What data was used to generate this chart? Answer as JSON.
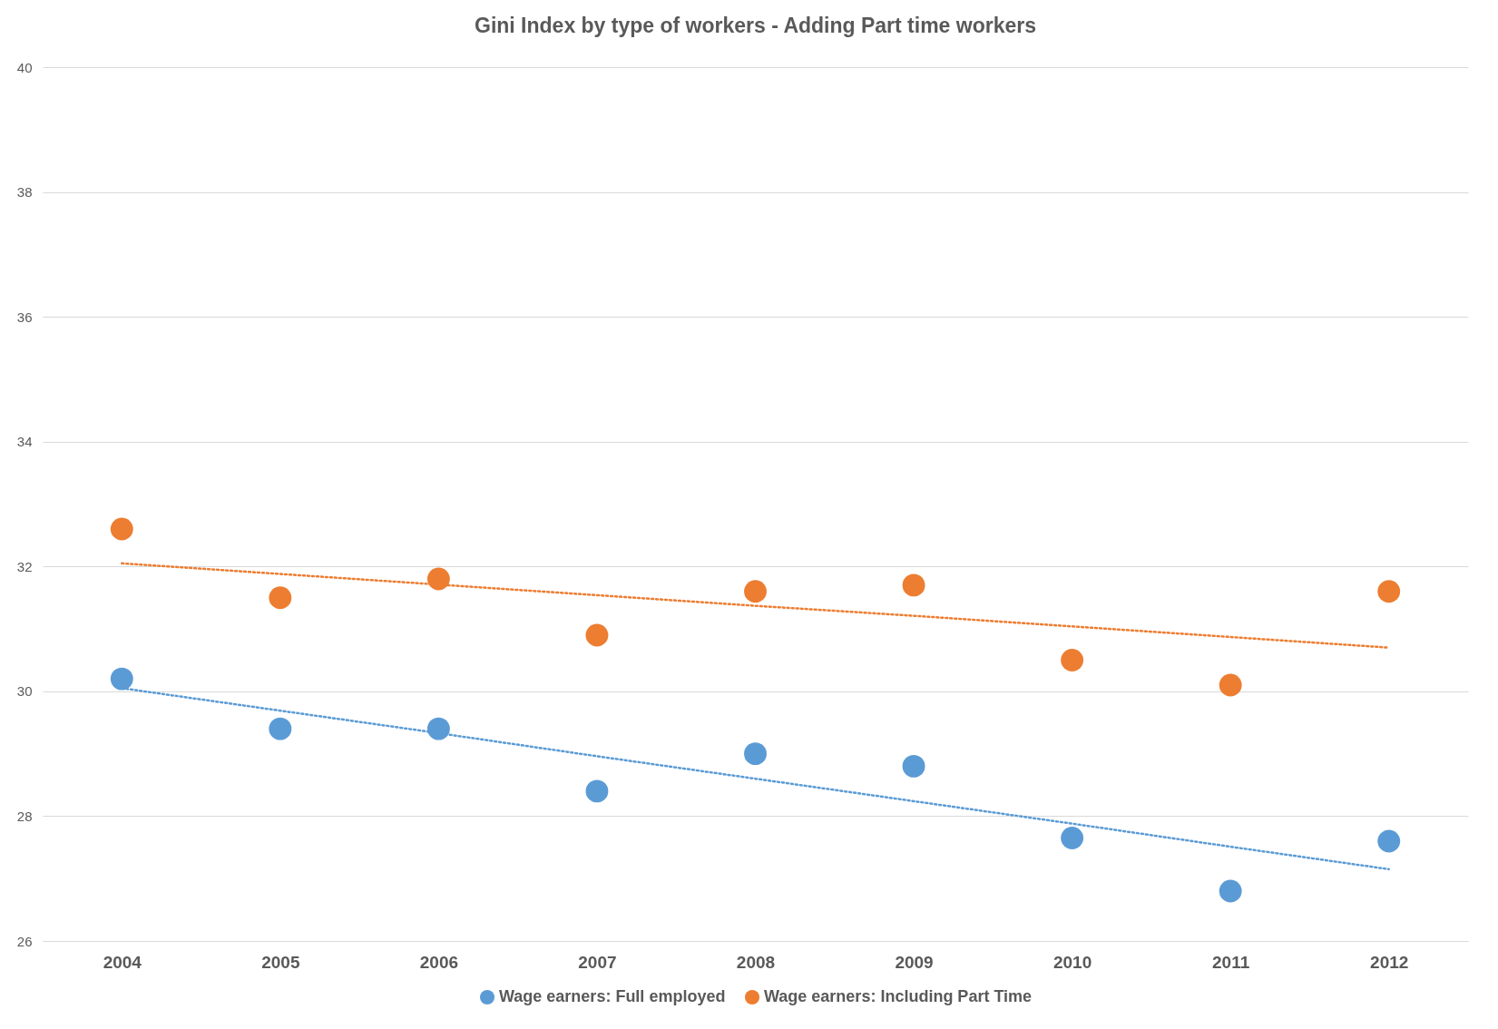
{
  "chart_data": {
    "type": "scatter",
    "title": "Gini Index by type of workers - Adding Part time workers",
    "categories": [
      "2004",
      "2005",
      "2006",
      "2007",
      "2008",
      "2009",
      "2010",
      "2011",
      "2012"
    ],
    "series": [
      {
        "name": "Wage earners: Full employed",
        "color": "#5b9bd5",
        "values": [
          30.2,
          29.4,
          29.4,
          28.4,
          29.0,
          28.8,
          27.65,
          26.8,
          27.6
        ]
      },
      {
        "name": "Wage earners: Including Part Time",
        "color": "#ed7d31",
        "values": [
          32.6,
          31.5,
          31.8,
          30.9,
          31.6,
          31.7,
          30.5,
          30.1,
          31.6
        ]
      },
      {
        "type": "line",
        "color": "#5b9bd5",
        "values": [
          30.05,
          29.69,
          29.33,
          28.96,
          28.6,
          28.24,
          27.88,
          27.51,
          27.15
        ],
        "line_style": "dotted",
        "marker": "none"
      },
      {
        "type": "line",
        "color": "#ed7d31",
        "values": [
          32.05,
          31.88,
          31.71,
          31.54,
          31.37,
          31.21,
          31.04,
          30.87,
          30.7
        ],
        "line_style": "dotted",
        "marker": "none"
      }
    ],
    "ylim": [
      26,
      40
    ],
    "yticks": [
      26,
      28,
      30,
      32,
      34,
      36,
      38,
      40
    ],
    "grid": "y",
    "legend": "bottom",
    "marker": "circle"
  }
}
